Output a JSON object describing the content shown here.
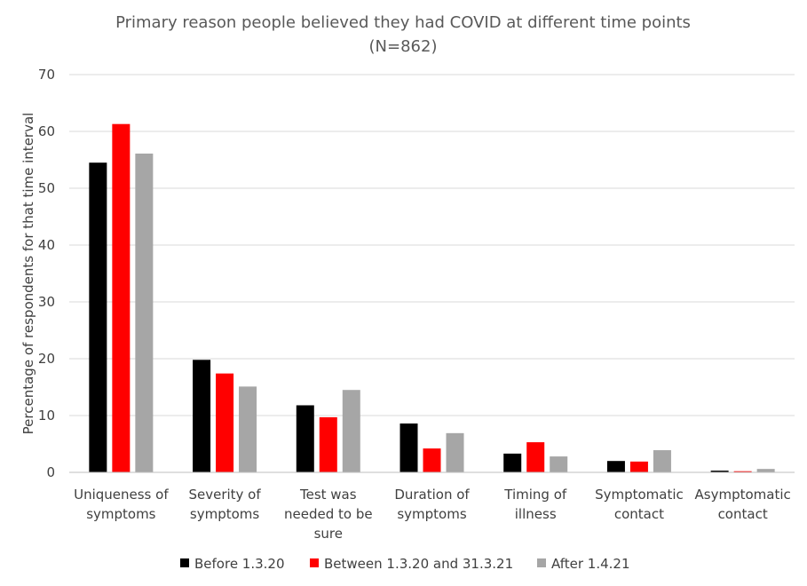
{
  "chart_data": {
    "type": "bar",
    "title_line1": "Primary reason people believed they had COVID at different time points",
    "title_line2": "(N=862)",
    "ylabel": "Percentage of respondents for that time interval",
    "xlabel": "",
    "ylim": [
      0,
      70
    ],
    "yticks": [
      0,
      10,
      20,
      30,
      40,
      50,
      60,
      70
    ],
    "grid": true,
    "legend_position": "bottom",
    "categories": [
      [
        "Uniqueness of",
        "symptoms"
      ],
      [
        "Severity of",
        "symptoms"
      ],
      [
        "Test was",
        "needed to be",
        "sure"
      ],
      [
        "Duration of",
        "symptoms"
      ],
      [
        "Timing of",
        "illness"
      ],
      [
        "Symptomatic",
        "contact"
      ],
      [
        "Asymptomatic",
        "contact"
      ]
    ],
    "series": [
      {
        "name": "Before 1.3.20",
        "color": "#000000",
        "values": [
          54.5,
          19.8,
          11.8,
          8.6,
          3.3,
          2.0,
          0.3
        ]
      },
      {
        "name": "Between 1.3.20 and 31.3.21",
        "color": "#ff0000",
        "values": [
          61.3,
          17.4,
          9.7,
          4.2,
          5.3,
          1.9,
          0.2
        ]
      },
      {
        "name": "After 1.4.21",
        "color": "#a6a6a6",
        "values": [
          56.1,
          15.1,
          14.5,
          6.9,
          2.8,
          3.9,
          0.6
        ]
      }
    ]
  }
}
